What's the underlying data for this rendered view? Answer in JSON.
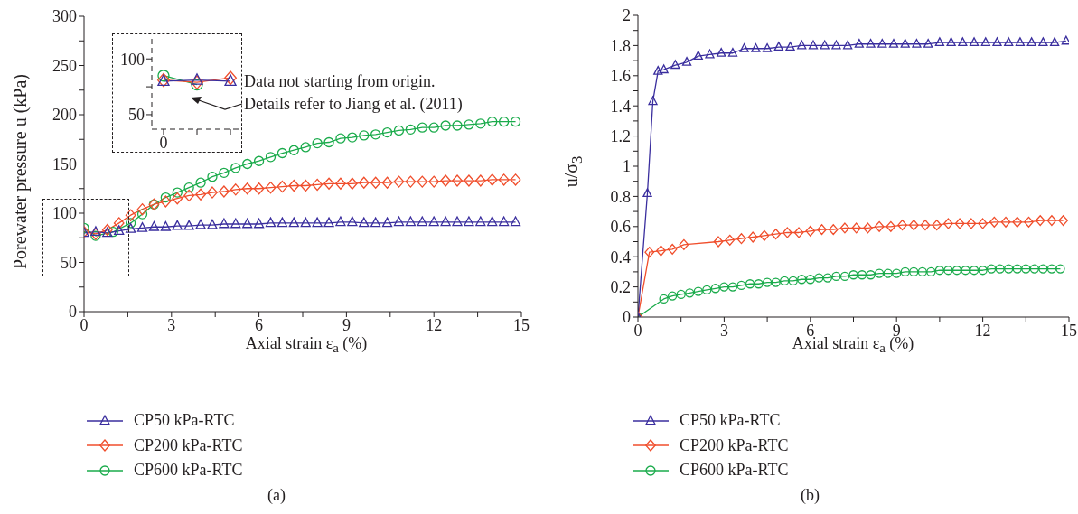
{
  "chart_data": [
    {
      "type": "line",
      "title": "(a)",
      "xlabel": "Axial strain ε$_{a}$ (%)",
      "ylabel": "Porewater pressure u (kPa)",
      "xlim": [
        0,
        15
      ],
      "ylim": [
        0,
        300
      ],
      "xticks": [
        0,
        {
          "value": 1.5,
          "label": null
        },
        3,
        {
          "value": 4.5,
          "label": null
        },
        6,
        {
          "value": 7.5,
          "label": null
        },
        9,
        {
          "value": 10.5,
          "label": null
        },
        12,
        {
          "value": 13.5,
          "label": null
        },
        15
      ],
      "yticks": [
        0,
        {
          "value": 25,
          "label": null
        },
        50,
        {
          "value": 75,
          "label": null
        },
        100,
        {
          "value": 125,
          "label": null
        },
        150,
        {
          "value": 175,
          "label": null
        },
        200,
        {
          "value": 225,
          "label": null
        },
        250,
        {
          "value": 275,
          "label": null
        },
        300
      ],
      "legend": "bottom",
      "line_style": "solid",
      "annotations": [
        "Data not starting from origin.",
        "Details refer to Jiang et al. (2011)"
      ],
      "series": [
        {
          "name": "CP50 kPa-RTC",
          "color": "#3a2e9e",
          "marker": "triangle",
          "x": [
            0,
            0.4,
            0.8,
            1.2,
            1.6,
            2,
            2.4,
            2.8,
            3.2,
            3.6,
            4,
            4.4,
            4.8,
            5.2,
            5.6,
            6,
            6.4,
            6.8,
            7.2,
            7.6,
            8,
            8.4,
            8.8,
            9.2,
            9.6,
            10,
            10.4,
            10.8,
            11.2,
            11.6,
            12,
            12.4,
            12.8,
            13.2,
            13.6,
            14,
            14.4,
            14.8
          ],
          "values": [
            80,
            81,
            80,
            82,
            84,
            85,
            86,
            86,
            87,
            87,
            88,
            88,
            89,
            89,
            89,
            89,
            90,
            90,
            90,
            90,
            90,
            90,
            91,
            91,
            90,
            90,
            90,
            91,
            91,
            91,
            91,
            91,
            91,
            91,
            91,
            91,
            91,
            91
          ]
        },
        {
          "name": "CP200 kPa-RTC",
          "color": "#f04e2c",
          "marker": "diamond",
          "x": [
            0,
            0.4,
            0.8,
            1.2,
            1.6,
            2,
            2.4,
            2.8,
            3.2,
            3.6,
            4,
            4.4,
            4.8,
            5.2,
            5.6,
            6,
            6.4,
            6.8,
            7.2,
            7.6,
            8,
            8.4,
            8.8,
            9.2,
            9.6,
            10,
            10.4,
            10.8,
            11.2,
            11.6,
            12,
            12.4,
            12.8,
            13.2,
            13.6,
            14,
            14.4,
            14.8
          ],
          "values": [
            81,
            79,
            83,
            90,
            98,
            104,
            109,
            112,
            115,
            118,
            119,
            121,
            122,
            124,
            125,
            125,
            126,
            127,
            128,
            128,
            129,
            130,
            130,
            130,
            131,
            131,
            131,
            132,
            132,
            132,
            132,
            133,
            133,
            133,
            133,
            134,
            134,
            134
          ]
        },
        {
          "name": "CP600 kPa-RTC",
          "color": "#1aab4b",
          "marker": "circle",
          "x": [
            0,
            0.4,
            1,
            1.6,
            2,
            2.4,
            2.8,
            3.2,
            3.6,
            4,
            4.4,
            4.8,
            5.2,
            5.6,
            6,
            6.4,
            6.8,
            7.2,
            7.6,
            8,
            8.4,
            8.8,
            9.2,
            9.6,
            10,
            10.4,
            10.8,
            11.2,
            11.6,
            12,
            12.4,
            12.8,
            13.2,
            13.6,
            14,
            14.4,
            14.8
          ],
          "values": [
            85,
            77,
            81,
            90,
            99,
            109,
            116,
            121,
            126,
            131,
            137,
            141,
            146,
            150,
            153,
            157,
            161,
            164,
            167,
            171,
            172,
            176,
            177,
            179,
            180,
            182,
            184,
            185,
            187,
            187,
            189,
            189,
            190,
            191,
            193,
            193,
            193
          ]
        }
      ]
    },
    {
      "type": "line",
      "categories": [
        "0",
        null,
        null
      ],
      "ylim": [
        37,
        118
      ],
      "yticks": [
        50,
        {
          "value": 75,
          "label": null
        },
        100
      ],
      "line_style": "solid",
      "series": [
        {
          "color": "#3a2e9e",
          "marker": "triangle",
          "values": [
            80,
            81,
            80
          ]
        },
        {
          "color": "#f04e2c",
          "marker": "diamond",
          "values": [
            81,
            79,
            83
          ]
        },
        {
          "color": "#1aab4b",
          "marker": "circle",
          "values": [
            85,
            77,
            null
          ]
        }
      ]
    },
    {
      "type": "line",
      "title": "(b)",
      "xlabel": "Axial strain ε$_{a}$ (%)",
      "ylabel": "u/σ$_{3}$",
      "xlim": [
        0,
        15
      ],
      "ylim": [
        0,
        2
      ],
      "xticks": [
        0,
        {
          "value": 1.5,
          "label": null
        },
        3,
        {
          "value": 4.5,
          "label": null
        },
        6,
        {
          "value": 7.5,
          "label": null
        },
        9,
        {
          "value": 10.5,
          "label": null
        },
        12,
        {
          "value": 13.5,
          "label": null
        },
        15
      ],
      "yticks": [
        0,
        {
          "value": 0.1,
          "label": null
        },
        0.2,
        {
          "value": 0.3,
          "label": null
        },
        0.4,
        {
          "value": 0.5,
          "label": null
        },
        0.6,
        {
          "value": 0.7,
          "label": null
        },
        0.8,
        {
          "value": 0.9,
          "label": null
        },
        1,
        {
          "value": 1.1,
          "label": null
        },
        1.2,
        {
          "value": 1.3,
          "label": null
        },
        1.4,
        {
          "value": 1.5,
          "label": null
        },
        1.6,
        {
          "value": 1.7,
          "label": null
        },
        1.8,
        {
          "value": 1.9,
          "label": null
        },
        2
      ],
      "legend": "bottom",
      "line_style": "solid",
      "series": [
        {
          "name": "CP50 kPa-RTC",
          "color": "#3a2e9e",
          "marker": "triangle",
          "x": [
            0,
            0.33,
            0.52,
            0.7,
            0.9,
            1.3,
            1.7,
            2.1,
            2.5,
            2.9,
            3.3,
            3.7,
            4.1,
            4.5,
            4.9,
            5.3,
            5.7,
            6.1,
            6.5,
            6.9,
            7.3,
            7.7,
            8.1,
            8.5,
            8.9,
            9.3,
            9.7,
            10.1,
            10.5,
            10.9,
            11.3,
            11.7,
            12.1,
            12.5,
            12.9,
            13.3,
            13.7,
            14.1,
            14.5,
            14.9
          ],
          "values": [
            0,
            0.82,
            1.43,
            1.63,
            1.64,
            1.67,
            1.69,
            1.73,
            1.74,
            1.75,
            1.75,
            1.78,
            1.78,
            1.78,
            1.79,
            1.79,
            1.8,
            1.8,
            1.8,
            1.8,
            1.8,
            1.81,
            1.81,
            1.81,
            1.81,
            1.81,
            1.81,
            1.81,
            1.82,
            1.82,
            1.82,
            1.82,
            1.82,
            1.82,
            1.82,
            1.82,
            1.82,
            1.82,
            1.82,
            1.83
          ]
        },
        {
          "name": "CP200 kPa-RTC",
          "color": "#f04e2c",
          "marker": "diamond",
          "x": [
            0,
            0.4,
            0.8,
            1.2,
            1.6,
            2.8,
            3.2,
            3.6,
            4,
            4.4,
            4.8,
            5.2,
            5.6,
            6,
            6.4,
            6.8,
            7.2,
            7.6,
            8,
            8.4,
            8.8,
            9.2,
            9.6,
            10,
            10.4,
            10.8,
            11.2,
            11.6,
            12,
            12.4,
            12.8,
            13.2,
            13.6,
            14,
            14.4,
            14.8
          ],
          "values": [
            0,
            0.43,
            0.44,
            0.45,
            0.48,
            0.5,
            0.51,
            0.52,
            0.53,
            0.54,
            0.55,
            0.56,
            0.56,
            0.57,
            0.58,
            0.58,
            0.59,
            0.59,
            0.59,
            0.6,
            0.6,
            0.61,
            0.61,
            0.61,
            0.61,
            0.62,
            0.62,
            0.62,
            0.62,
            0.63,
            0.63,
            0.63,
            0.63,
            0.64,
            0.64,
            0.64
          ]
        },
        {
          "name": "CP600 kPa-RTC",
          "color": "#1aab4b",
          "marker": "circle",
          "x": [
            0,
            0.9,
            1.2,
            1.5,
            1.8,
            2.1,
            2.4,
            2.7,
            3,
            3.3,
            3.6,
            3.9,
            4.2,
            4.5,
            4.8,
            5.1,
            5.4,
            5.7,
            6,
            6.3,
            6.6,
            6.9,
            7.2,
            7.5,
            7.8,
            8.1,
            8.4,
            8.7,
            9,
            9.3,
            9.6,
            9.9,
            10.2,
            10.5,
            10.8,
            11.1,
            11.4,
            11.7,
            12,
            12.3,
            12.6,
            12.9,
            13.2,
            13.5,
            13.8,
            14.1,
            14.4,
            14.7
          ],
          "values": [
            0,
            0.12,
            0.14,
            0.15,
            0.16,
            0.17,
            0.18,
            0.19,
            0.2,
            0.2,
            0.21,
            0.22,
            0.22,
            0.23,
            0.23,
            0.24,
            0.24,
            0.25,
            0.25,
            0.26,
            0.26,
            0.27,
            0.27,
            0.28,
            0.28,
            0.28,
            0.29,
            0.29,
            0.29,
            0.3,
            0.3,
            0.3,
            0.3,
            0.31,
            0.31,
            0.31,
            0.31,
            0.31,
            0.31,
            0.32,
            0.32,
            0.32,
            0.32,
            0.32,
            0.32,
            0.32,
            0.32,
            0.32
          ]
        }
      ]
    }
  ]
}
